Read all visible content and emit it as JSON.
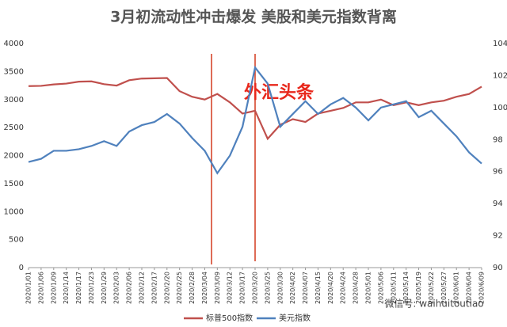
{
  "chart_data": {
    "type": "line",
    "title": "3月初流动性冲击爆发 美股和美元指数背离",
    "categories": [
      "2020/1/01",
      "2020/1/06",
      "2020/1/09",
      "2020/1/14",
      "2020/1/17",
      "2020/1/23",
      "2020/1/29",
      "2020/2/03",
      "2020/2/06",
      "2020/2/12",
      "2020/2/17",
      "2020/2/20",
      "2020/2/25",
      "2020/2/28",
      "2020/3/04",
      "2020/3/09",
      "2020/3/12",
      "2020/3/17",
      "2020/3/20",
      "2020/3/25",
      "2020/3/30",
      "2020/4/02",
      "2020/4/07",
      "2020/4/15",
      "2020/4/20",
      "2020/4/24",
      "2020/4/28",
      "2020/5/01",
      "2020/5/06",
      "2020/5/11",
      "2020/5/14",
      "2020/5/19",
      "2020/5/22",
      "2020/5/27",
      "2020/6/01",
      "2020/6/04",
      "2020/6/09"
    ],
    "series": [
      {
        "name": "标普500指数",
        "color": "#c0504d",
        "values": [
          3240,
          3245,
          3270,
          3285,
          3320,
          3325,
          3275,
          3250,
          3345,
          3375,
          3380,
          3385,
          3150,
          3050,
          3000,
          3100,
          2950,
          2750,
          2800,
          2300,
          2550,
          2650,
          2600,
          2750,
          2800,
          2850,
          2950,
          2950,
          3000,
          2900,
          2950,
          2900,
          2950,
          2980,
          3050,
          3100,
          3230
        ]
      },
      {
        "name": "美元指数",
        "color": "#4f81bd",
        "axis": "y2",
        "values": [
          96.6,
          96.8,
          97.3,
          97.3,
          97.4,
          97.6,
          97.9,
          97.6,
          98.5,
          98.9,
          99.1,
          99.6,
          99.0,
          98.1,
          97.3,
          95.9,
          97.0,
          98.8,
          102.5,
          101.5,
          98.8,
          99.6,
          100.4,
          99.6,
          100.2,
          100.6,
          100.0,
          99.2,
          100.0,
          100.2,
          100.4,
          99.4,
          99.8,
          99.0,
          98.2,
          97.2,
          96.5
        ]
      }
    ],
    "ylim": [
      0,
      4000
    ],
    "yticks": [
      0,
      500,
      1000,
      1500,
      2000,
      2500,
      3000,
      3500,
      4000
    ],
    "y2lim": [
      90,
      104
    ],
    "y2ticks": [
      90,
      92,
      94,
      96,
      98,
      100,
      102,
      104
    ],
    "legend": "bottom",
    "annotation": "外汇头条",
    "watermark": "微信号: waihuitoutiao"
  }
}
